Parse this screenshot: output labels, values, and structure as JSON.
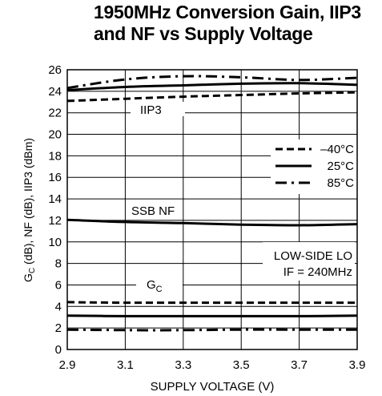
{
  "chart_data": {
    "type": "line",
    "title": [
      "1950MHz Conversion Gain, IIP3",
      "and NF vs Supply Voltage"
    ],
    "xlabel": "SUPPLY VOLTAGE (V)",
    "ylabel": {
      "g": "G",
      "sub": "C",
      "rest": " (dB), NF (dB), IIP3 (dBm)"
    },
    "xlim": [
      2.9,
      3.9
    ],
    "ylim": [
      0,
      26
    ],
    "xticks": [
      2.9,
      3.1,
      3.3,
      3.5,
      3.7,
      3.9
    ],
    "xtick_labels": [
      "2.9",
      "3.1",
      "3.3",
      "3.5",
      "3.7",
      "3.9"
    ],
    "yticks": [
      0,
      2,
      4,
      6,
      8,
      10,
      12,
      14,
      16,
      18,
      20,
      22,
      24,
      26
    ],
    "ytick_labels": [
      "0",
      "2",
      "4",
      "6",
      "8",
      "10",
      "12",
      "14",
      "16",
      "18",
      "20",
      "22",
      "24",
      "26"
    ],
    "grid": true,
    "legend": {
      "placement": "right-upper",
      "entries": [
        {
          "label": "–40°C",
          "style": "dashed"
        },
        {
          "label": "25°C",
          "style": "solid"
        },
        {
          "label": "85°C",
          "style": "dashdot"
        }
      ]
    },
    "annotations": {
      "iip3": "IIP3",
      "nf": "SSB NF",
      "gc": {
        "g": "G",
        "sub": "C"
      },
      "conditions": [
        "LOW-SIDE LO",
        "IF = 240MHz"
      ]
    },
    "x": [
      2.9,
      3.1,
      3.3,
      3.5,
      3.7,
      3.9
    ],
    "series": [
      {
        "group": "IIP3",
        "style": "dashed",
        "values": [
          23.1,
          23.3,
          23.5,
          23.65,
          23.8,
          23.9
        ]
      },
      {
        "group": "IIP3",
        "style": "solid",
        "values": [
          24.1,
          24.4,
          24.55,
          24.7,
          24.75,
          24.6
        ]
      },
      {
        "group": "IIP3",
        "style": "dashdot",
        "values": [
          24.3,
          25.1,
          25.4,
          25.3,
          25.05,
          25.25
        ]
      },
      {
        "group": "SSB NF",
        "style": "solid",
        "values": [
          12.05,
          11.85,
          11.75,
          11.6,
          11.55,
          11.65
        ]
      },
      {
        "group": "GC",
        "style": "dashed",
        "values": [
          4.4,
          4.35,
          4.35,
          4.35,
          4.35,
          4.35
        ]
      },
      {
        "group": "GC",
        "style": "solid",
        "values": [
          3.15,
          3.1,
          3.1,
          3.1,
          3.1,
          3.15
        ]
      },
      {
        "group": "GC",
        "style": "dashdot",
        "values": [
          1.85,
          1.8,
          1.8,
          1.85,
          1.85,
          1.85
        ]
      }
    ]
  }
}
